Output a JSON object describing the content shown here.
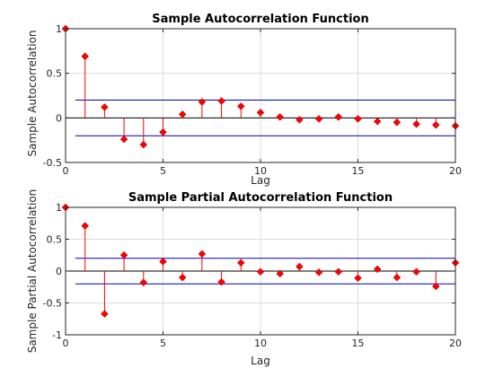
{
  "chart_data": [
    {
      "type": "stem",
      "title": "Sample Autocorrelation Function",
      "xlabel": "Lag",
      "ylabel": "Sample Autocorrelation",
      "xlim": [
        0,
        20
      ],
      "ylim": [
        -0.5,
        1
      ],
      "xticks": [
        0,
        5,
        10,
        15,
        20
      ],
      "yticks": [
        -0.5,
        0,
        0.5,
        1
      ],
      "yticklabels": [
        "-0.5",
        "0",
        "0.5",
        "1"
      ],
      "grid": true,
      "confidence_bounds": [
        0.2,
        -0.2
      ],
      "x": [
        0,
        1,
        2,
        3,
        4,
        5,
        6,
        7,
        8,
        9,
        10,
        11,
        12,
        13,
        14,
        15,
        16,
        17,
        18,
        19,
        20
      ],
      "values": [
        1.0,
        0.69,
        0.12,
        -0.24,
        -0.3,
        -0.16,
        0.04,
        0.18,
        0.19,
        0.13,
        0.06,
        0.01,
        -0.02,
        -0.01,
        0.01,
        -0.01,
        -0.04,
        -0.05,
        -0.07,
        -0.08,
        -0.09
      ],
      "colors": {
        "stem": "#ff0000",
        "bound": "#0000aa",
        "marker": "#ff0000",
        "zero": "#000000"
      }
    },
    {
      "type": "stem",
      "title": "Sample Partial Autocorrelation Function",
      "xlabel": "Lag",
      "ylabel": "Sample Partial Autocorrelation",
      "xlim": [
        0,
        20
      ],
      "ylim": [
        -1,
        1
      ],
      "xticks": [
        0,
        5,
        10,
        15,
        20
      ],
      "yticks": [
        -1,
        -0.5,
        0,
        0.5,
        1
      ],
      "yticklabels": [
        "-1",
        "-0.5",
        "0",
        "0.5",
        "1"
      ],
      "grid": true,
      "confidence_bounds": [
        0.2,
        -0.2
      ],
      "x": [
        0,
        1,
        2,
        3,
        4,
        5,
        6,
        7,
        8,
        9,
        10,
        11,
        12,
        13,
        14,
        15,
        16,
        17,
        18,
        19,
        20
      ],
      "values": [
        1.0,
        0.71,
        -0.67,
        0.25,
        -0.18,
        0.15,
        -0.1,
        0.27,
        -0.17,
        0.13,
        -0.01,
        -0.04,
        0.07,
        -0.02,
        -0.01,
        -0.11,
        0.03,
        -0.1,
        -0.01,
        -0.24,
        0.13
      ],
      "colors": {
        "stem": "#ff0000",
        "bound": "#0000aa",
        "marker": "#ff0000",
        "zero": "#000000"
      }
    }
  ]
}
